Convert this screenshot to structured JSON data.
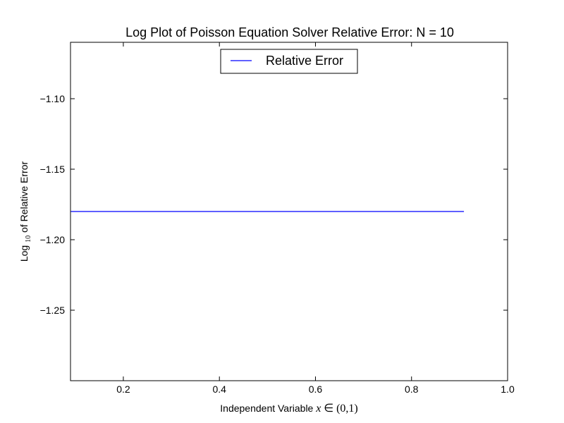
{
  "chart_data": {
    "type": "line",
    "title": "Log Plot of Poisson Equation Solver Relative Error: N =  10",
    "xlabel_prefix": "Independent Variable",
    "xlabel_var": "x",
    "xlabel_in": "∈",
    "xlabel_interval": "(0,1)",
    "ylabel_base": "Log",
    "ylabel_sub": "10",
    "ylabel_rest": " of Relative Error",
    "xlim": [
      0.09,
      1.0
    ],
    "ylim": [
      -1.3,
      -1.06
    ],
    "xticks": [
      0.2,
      0.4,
      0.6,
      0.8,
      1.0
    ],
    "xtick_labels": [
      "0.2",
      "0.4",
      "0.6",
      "0.8",
      "1.0"
    ],
    "yticks": [
      -1.1,
      -1.15,
      -1.2,
      -1.25
    ],
    "ytick_labels": [
      "−1.10",
      "−1.15",
      "−1.20",
      "−1.25"
    ],
    "grid": false,
    "legend_position": "top-center",
    "series": [
      {
        "name": "Relative Error",
        "color": "#0000ff",
        "x": [
          0.0909,
          0.1818,
          0.2727,
          0.3636,
          0.4545,
          0.5455,
          0.6364,
          0.7273,
          0.8182,
          0.9091
        ],
        "y": [
          -1.18,
          -1.18,
          -1.18,
          -1.18,
          -1.18,
          -1.18,
          -1.18,
          -1.18,
          -1.18,
          -1.18
        ]
      }
    ]
  }
}
